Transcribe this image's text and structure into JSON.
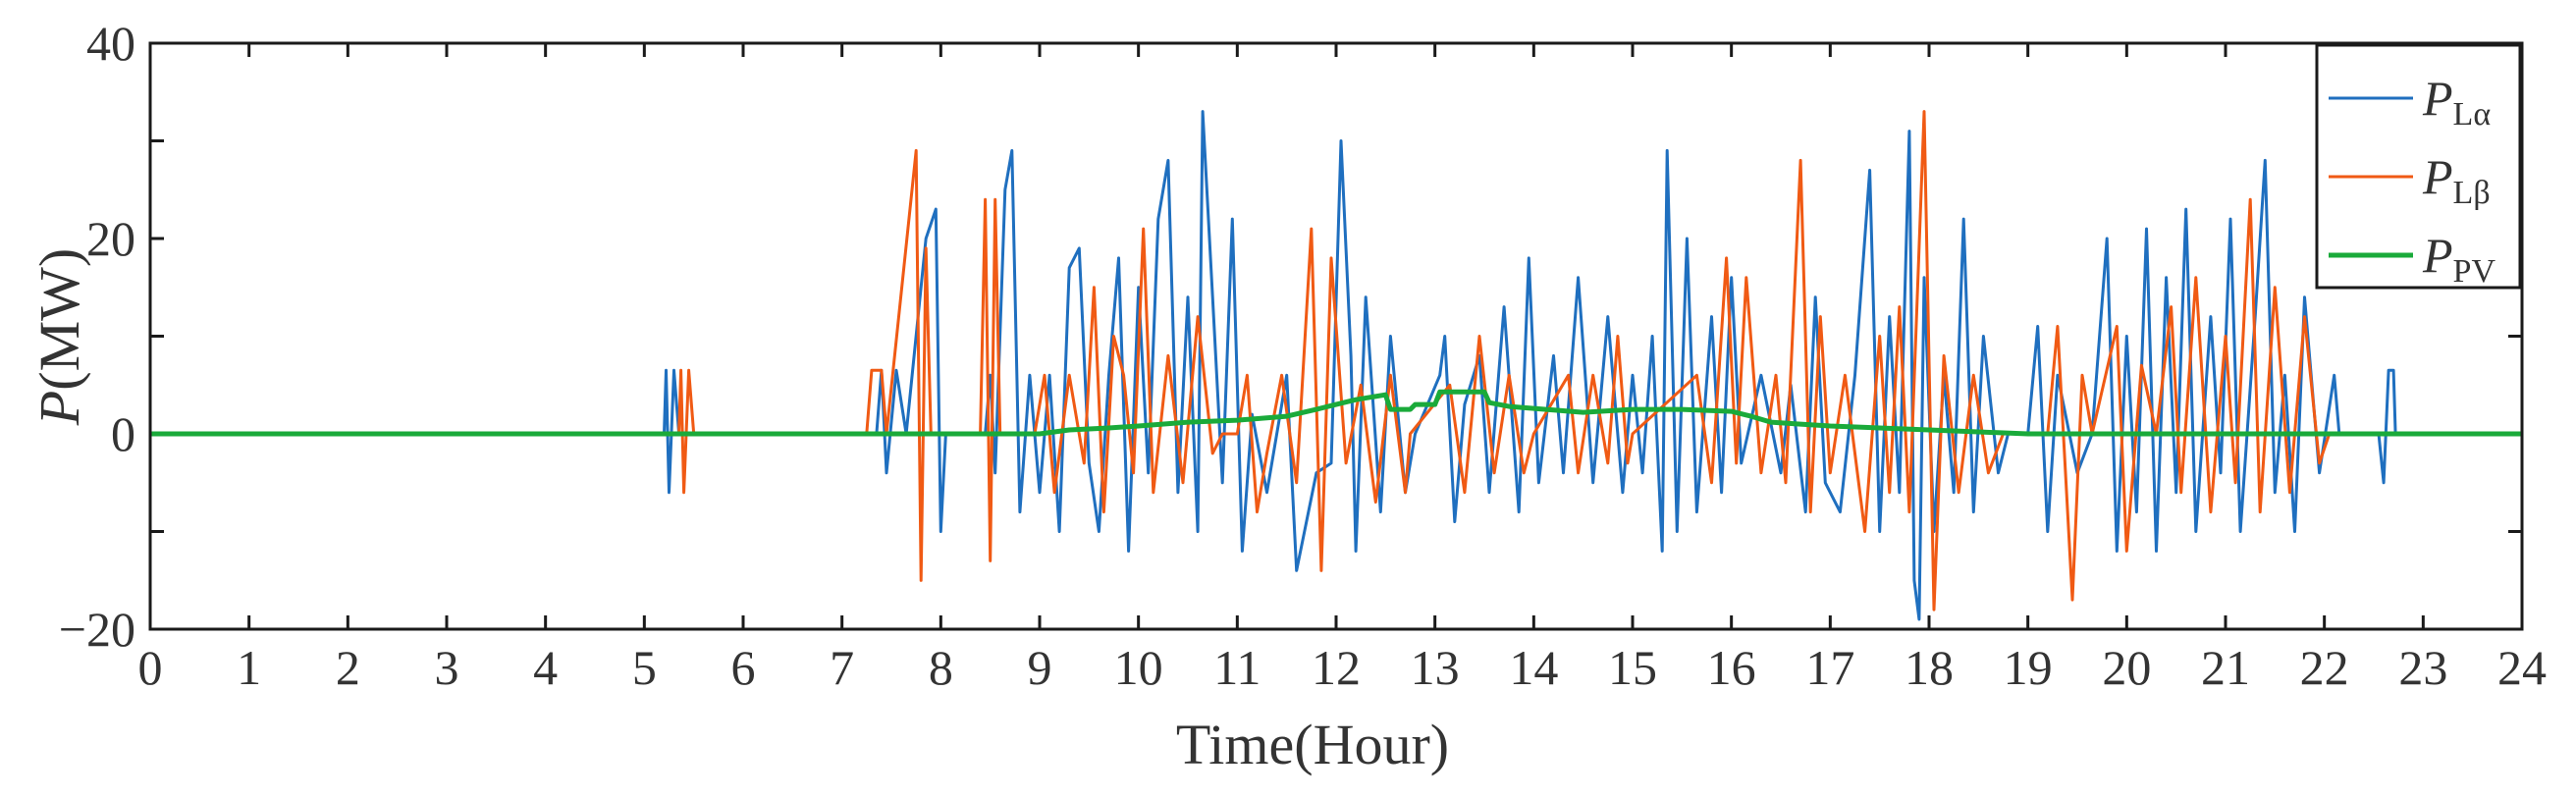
{
  "chart_data": {
    "type": "line",
    "title": "",
    "xlabel": "Time(Hour)",
    "ylabel": {
      "symbol": "P",
      "unit": "(MW)"
    },
    "xlim": [
      0,
      24
    ],
    "ylim": [
      -20,
      40
    ],
    "x_ticks": [
      "0",
      "1",
      "2",
      "3",
      "4",
      "5",
      "6",
      "7",
      "8",
      "9",
      "10",
      "11",
      "12",
      "13",
      "14",
      "15",
      "16",
      "17",
      "18",
      "19",
      "20",
      "21",
      "22",
      "23",
      "24"
    ],
    "y_ticks": [
      "40",
      "20",
      "0",
      "−20"
    ],
    "grid": false,
    "legend_position": "top-right",
    "series": [
      {
        "name": {
          "symbol": "P",
          "sub": "Lα"
        },
        "color": "#1f6fbf",
        "points": [
          [
            0,
            0
          ],
          [
            5.2,
            0
          ],
          [
            5.22,
            6.5
          ],
          [
            5.25,
            -6
          ],
          [
            5.3,
            6.5
          ],
          [
            5.35,
            0
          ],
          [
            7.35,
            0
          ],
          [
            7.4,
            6.5
          ],
          [
            7.45,
            -4
          ],
          [
            7.55,
            6.5
          ],
          [
            7.65,
            0
          ],
          [
            7.85,
            20
          ],
          [
            7.95,
            23
          ],
          [
            8.0,
            -10
          ],
          [
            8.05,
            0
          ],
          [
            8.45,
            0
          ],
          [
            8.5,
            6
          ],
          [
            8.55,
            -4
          ],
          [
            8.65,
            25
          ],
          [
            8.72,
            29
          ],
          [
            8.8,
            -8
          ],
          [
            8.9,
            6
          ],
          [
            9.0,
            -6
          ],
          [
            9.1,
            6
          ],
          [
            9.2,
            -10
          ],
          [
            9.3,
            17
          ],
          [
            9.4,
            19
          ],
          [
            9.5,
            -3
          ],
          [
            9.6,
            -10
          ],
          [
            9.7,
            6
          ],
          [
            9.8,
            18
          ],
          [
            9.9,
            -12
          ],
          [
            10.0,
            15
          ],
          [
            10.1,
            -4
          ],
          [
            10.2,
            22
          ],
          [
            10.3,
            28
          ],
          [
            10.4,
            -6
          ],
          [
            10.5,
            14
          ],
          [
            10.6,
            -10
          ],
          [
            10.65,
            33
          ],
          [
            10.75,
            14
          ],
          [
            10.85,
            -5
          ],
          [
            10.95,
            22
          ],
          [
            11.05,
            -12
          ],
          [
            11.15,
            2
          ],
          [
            11.3,
            -6
          ],
          [
            11.5,
            6
          ],
          [
            11.6,
            -14
          ],
          [
            11.8,
            -4
          ],
          [
            11.95,
            -3
          ],
          [
            12.05,
            30
          ],
          [
            12.15,
            8
          ],
          [
            12.2,
            -12
          ],
          [
            12.3,
            14
          ],
          [
            12.45,
            -8
          ],
          [
            12.55,
            10
          ],
          [
            12.7,
            -6
          ],
          [
            12.8,
            0
          ],
          [
            13.05,
            6
          ],
          [
            13.1,
            10
          ],
          [
            13.2,
            -9
          ],
          [
            13.3,
            3
          ],
          [
            13.45,
            8
          ],
          [
            13.55,
            -6
          ],
          [
            13.7,
            13
          ],
          [
            13.85,
            -8
          ],
          [
            13.95,
            18
          ],
          [
            14.05,
            -5
          ],
          [
            14.2,
            8
          ],
          [
            14.3,
            -4
          ],
          [
            14.45,
            16
          ],
          [
            14.6,
            -5
          ],
          [
            14.75,
            12
          ],
          [
            14.9,
            -6
          ],
          [
            15.0,
            6
          ],
          [
            15.1,
            -4
          ],
          [
            15.2,
            10
          ],
          [
            15.3,
            -12
          ],
          [
            15.35,
            29
          ],
          [
            15.45,
            -10
          ],
          [
            15.55,
            20
          ],
          [
            15.65,
            -8
          ],
          [
            15.8,
            12
          ],
          [
            15.9,
            -6
          ],
          [
            16.0,
            16
          ],
          [
            16.1,
            -3
          ],
          [
            16.3,
            6
          ],
          [
            16.5,
            -4
          ],
          [
            16.6,
            5
          ],
          [
            16.75,
            -8
          ],
          [
            16.85,
            14
          ],
          [
            16.95,
            -5
          ],
          [
            17.1,
            -8
          ],
          [
            17.25,
            6
          ],
          [
            17.4,
            27
          ],
          [
            17.5,
            -10
          ],
          [
            17.6,
            12
          ],
          [
            17.7,
            -6
          ],
          [
            17.8,
            31
          ],
          [
            17.85,
            -15
          ],
          [
            17.9,
            -19
          ],
          [
            17.95,
            16
          ],
          [
            18.05,
            -10
          ],
          [
            18.15,
            6
          ],
          [
            18.25,
            -6
          ],
          [
            18.35,
            22
          ],
          [
            18.45,
            -8
          ],
          [
            18.55,
            10
          ],
          [
            18.7,
            -4
          ],
          [
            18.8,
            0
          ],
          [
            19.0,
            0
          ],
          [
            19.1,
            11
          ],
          [
            19.2,
            -10
          ],
          [
            19.3,
            6
          ],
          [
            19.5,
            -4
          ],
          [
            19.65,
            0
          ],
          [
            19.8,
            20
          ],
          [
            19.9,
            -12
          ],
          [
            20.0,
            10
          ],
          [
            20.1,
            -8
          ],
          [
            20.2,
            21
          ],
          [
            20.3,
            -12
          ],
          [
            20.4,
            16
          ],
          [
            20.5,
            -6
          ],
          [
            20.6,
            23
          ],
          [
            20.7,
            -10
          ],
          [
            20.85,
            12
          ],
          [
            20.95,
            -4
          ],
          [
            21.05,
            22
          ],
          [
            21.15,
            -10
          ],
          [
            21.3,
            12
          ],
          [
            21.4,
            28
          ],
          [
            21.5,
            -6
          ],
          [
            21.6,
            6
          ],
          [
            21.7,
            -10
          ],
          [
            21.8,
            14
          ],
          [
            21.95,
            -4
          ],
          [
            22.1,
            6
          ],
          [
            22.15,
            0
          ],
          [
            22.55,
            0
          ],
          [
            22.6,
            -5
          ],
          [
            22.65,
            6.5
          ],
          [
            22.7,
            6.5
          ],
          [
            22.72,
            0
          ],
          [
            24,
            0
          ]
        ]
      },
      {
        "name": {
          "symbol": "P",
          "sub": "Lβ"
        },
        "color": "#f05a14",
        "points": [
          [
            0,
            0
          ],
          [
            5.35,
            0
          ],
          [
            5.37,
            6.5
          ],
          [
            5.4,
            -6
          ],
          [
            5.45,
            6.5
          ],
          [
            5.5,
            0
          ],
          [
            7.25,
            0
          ],
          [
            7.3,
            6.5
          ],
          [
            7.4,
            6.5
          ],
          [
            7.45,
            0
          ],
          [
            7.75,
            29
          ],
          [
            7.8,
            -15
          ],
          [
            7.85,
            19
          ],
          [
            7.9,
            0
          ],
          [
            8.4,
            0
          ],
          [
            8.45,
            24
          ],
          [
            8.5,
            -13
          ],
          [
            8.55,
            24
          ],
          [
            8.6,
            0
          ],
          [
            8.95,
            0
          ],
          [
            9.05,
            6
          ],
          [
            9.15,
            -6
          ],
          [
            9.3,
            6
          ],
          [
            9.45,
            -3
          ],
          [
            9.55,
            15
          ],
          [
            9.65,
            -8
          ],
          [
            9.75,
            10
          ],
          [
            9.85,
            6
          ],
          [
            9.95,
            -4
          ],
          [
            10.05,
            21
          ],
          [
            10.15,
            -6
          ],
          [
            10.3,
            8
          ],
          [
            10.45,
            -5
          ],
          [
            10.6,
            12
          ],
          [
            10.75,
            -2
          ],
          [
            10.85,
            0
          ],
          [
            11.0,
            0
          ],
          [
            11.1,
            6
          ],
          [
            11.2,
            -8
          ],
          [
            11.3,
            -2
          ],
          [
            11.45,
            6
          ],
          [
            11.6,
            -5
          ],
          [
            11.75,
            21
          ],
          [
            11.85,
            -14
          ],
          [
            11.95,
            18
          ],
          [
            12.1,
            -3
          ],
          [
            12.25,
            5
          ],
          [
            12.4,
            -7
          ],
          [
            12.55,
            6
          ],
          [
            12.7,
            -6
          ],
          [
            12.75,
            0
          ],
          [
            13.15,
            5
          ],
          [
            13.3,
            -6
          ],
          [
            13.45,
            10
          ],
          [
            13.6,
            -4
          ],
          [
            13.75,
            6
          ],
          [
            13.9,
            -4
          ],
          [
            14.0,
            0
          ],
          [
            14.35,
            6
          ],
          [
            14.45,
            -4
          ],
          [
            14.6,
            6
          ],
          [
            14.75,
            -3
          ],
          [
            14.85,
            10
          ],
          [
            14.95,
            -3
          ],
          [
            15.0,
            0
          ],
          [
            15.65,
            6
          ],
          [
            15.8,
            -5
          ],
          [
            15.95,
            18
          ],
          [
            16.05,
            -3
          ],
          [
            16.15,
            16
          ],
          [
            16.3,
            -4
          ],
          [
            16.45,
            6
          ],
          [
            16.55,
            -5
          ],
          [
            16.7,
            28
          ],
          [
            16.8,
            -8
          ],
          [
            16.9,
            12
          ],
          [
            17.0,
            -4
          ],
          [
            17.15,
            6
          ],
          [
            17.35,
            -10
          ],
          [
            17.5,
            10
          ],
          [
            17.6,
            -6
          ],
          [
            17.7,
            13
          ],
          [
            17.8,
            -8
          ],
          [
            17.95,
            33
          ],
          [
            18.05,
            -18
          ],
          [
            18.15,
            8
          ],
          [
            18.3,
            -6
          ],
          [
            18.45,
            6
          ],
          [
            18.6,
            -4
          ],
          [
            18.75,
            0
          ],
          [
            19.2,
            0
          ],
          [
            19.3,
            11
          ],
          [
            19.45,
            -17
          ],
          [
            19.55,
            6
          ],
          [
            19.65,
            0
          ],
          [
            19.9,
            11
          ],
          [
            20.0,
            -12
          ],
          [
            20.15,
            7
          ],
          [
            20.3,
            0
          ],
          [
            20.45,
            13
          ],
          [
            20.55,
            -6
          ],
          [
            20.7,
            16
          ],
          [
            20.85,
            -8
          ],
          [
            21.0,
            10
          ],
          [
            21.1,
            -5
          ],
          [
            21.25,
            24
          ],
          [
            21.35,
            -8
          ],
          [
            21.5,
            15
          ],
          [
            21.65,
            -6
          ],
          [
            21.8,
            12
          ],
          [
            21.95,
            -3
          ],
          [
            22.05,
            0
          ],
          [
            24,
            0
          ]
        ]
      },
      {
        "name": {
          "symbol": "P",
          "sub": "PV"
        },
        "color": "#1aaa3a",
        "points": [
          [
            0,
            0
          ],
          [
            9.0,
            0
          ],
          [
            9.3,
            0.4
          ],
          [
            9.7,
            0.6
          ],
          [
            10.0,
            0.8
          ],
          [
            10.5,
            1.2
          ],
          [
            11.0,
            1.4
          ],
          [
            11.5,
            1.8
          ],
          [
            11.8,
            2.5
          ],
          [
            12.0,
            3.0
          ],
          [
            12.2,
            3.5
          ],
          [
            12.5,
            4.0
          ],
          [
            12.55,
            2.5
          ],
          [
            12.75,
            2.5
          ],
          [
            12.8,
            3.0
          ],
          [
            13.0,
            3.0
          ],
          [
            13.05,
            4.3
          ],
          [
            13.3,
            4.3
          ],
          [
            13.5,
            4.3
          ],
          [
            13.55,
            3.2
          ],
          [
            13.75,
            2.8
          ],
          [
            14.0,
            2.6
          ],
          [
            14.5,
            2.2
          ],
          [
            15.0,
            2.5
          ],
          [
            15.5,
            2.5
          ],
          [
            16.0,
            2.3
          ],
          [
            16.2,
            1.8
          ],
          [
            16.4,
            1.2
          ],
          [
            16.7,
            1.0
          ],
          [
            17.0,
            0.8
          ],
          [
            17.5,
            0.6
          ],
          [
            18.0,
            0.4
          ],
          [
            18.5,
            0.2
          ],
          [
            19.0,
            0
          ],
          [
            24,
            0
          ]
        ]
      }
    ]
  }
}
